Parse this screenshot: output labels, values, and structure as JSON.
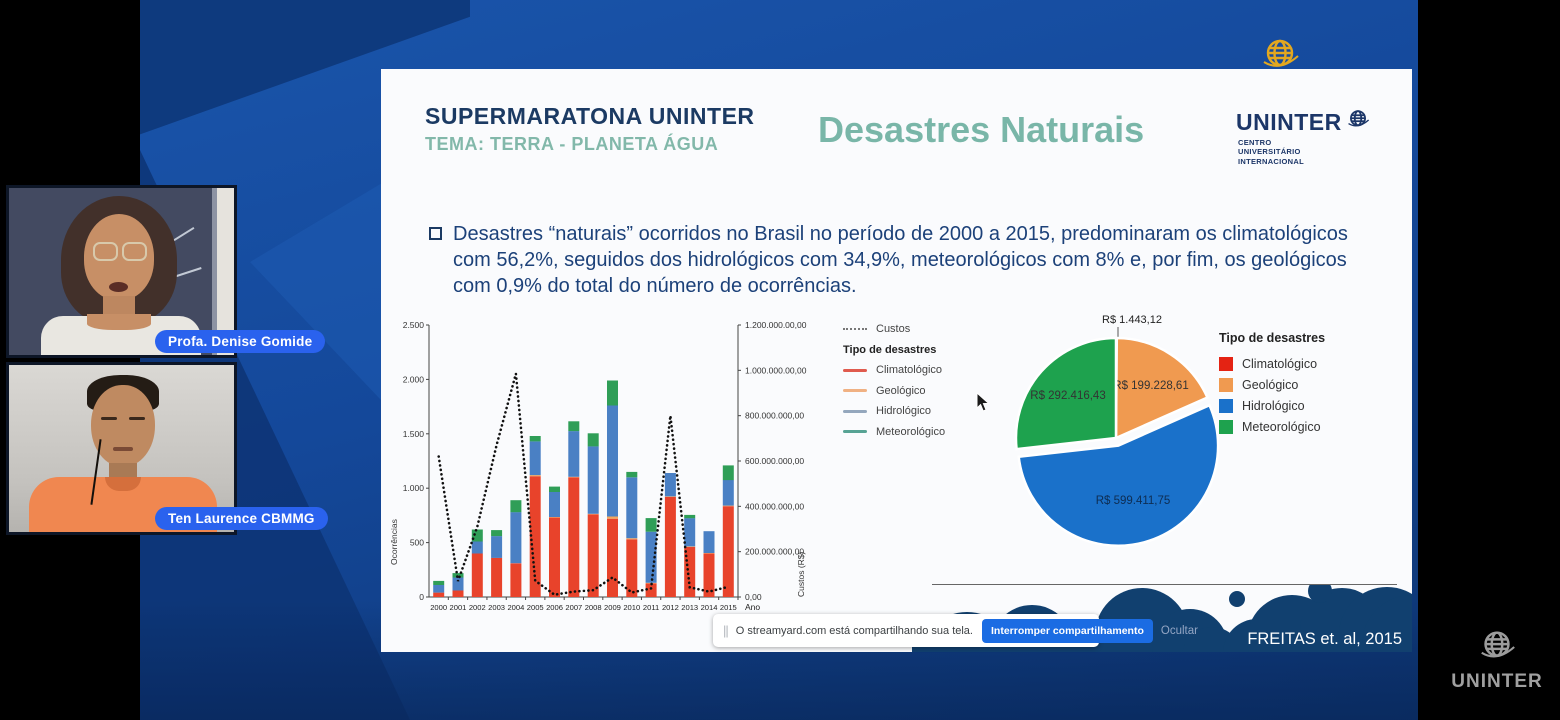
{
  "stream": {
    "participants": [
      {
        "label": "Profa. Denise Gomide"
      },
      {
        "label": "Ten Laurence CBMMG"
      }
    ],
    "share_bar": {
      "message": "O streamyard.com está compartilhando sua tela.",
      "stop_button": "Interromper compartilhamento",
      "hide_button": "Ocultar"
    },
    "watermark_text": "UNINTER"
  },
  "slide": {
    "kicker_title": "SUPERMARATONA UNINTER",
    "kicker_subtitle": "TEMA: TERRA - PLANETA ÁGUA",
    "title": "Desastres Naturais",
    "logo_text": "UNINTER",
    "logo_subtext_lines": [
      "CENTRO",
      "UNIVERSITÁRIO",
      "INTERNACIONAL"
    ],
    "bullet_text": "Desastres “naturais” ocorridos no Brasil no período de 2000 a 2015, predominaram os climatológicos com 56,2%, seguidos dos hidrológicos com 34,9%, meteorológicos com 8% e, por fim, os geológicos com 0,9% do total do número de ocorrências.",
    "citation": "FREITAS et. al, 2015"
  },
  "colors": {
    "accent_teal": "#79b6a8",
    "navy": "#1b3a63",
    "pill_blue": "#2a62ee",
    "stream_button_blue": "#1b6ce3",
    "slide_footer_navy": "#11406f"
  },
  "chart_data": [
    {
      "type": "bar",
      "subtype": "stacked-bars-with-dotted-line",
      "xlabel": "Ano",
      "ylabel_left": "Ocorrências",
      "ylabel_right": "Custos (R$)",
      "categories": [
        "2000",
        "2001",
        "2002",
        "2003",
        "2004",
        "2005",
        "2006",
        "2007",
        "2008",
        "2009",
        "2010",
        "2011",
        "2012",
        "2013",
        "2014",
        "2015"
      ],
      "ylim_left": [
        0,
        2500
      ],
      "yticks_left": [
        "0",
        "500",
        "1.000",
        "1.500",
        "2.000",
        "2.500"
      ],
      "ylim_right": [
        0,
        1200000000
      ],
      "yticks_right": [
        "0,00",
        "200.000.000,00",
        "400.000.000,00",
        "600.000.000,00",
        "800.000.000,00",
        "1.000.000.00,00",
        "1.200.000.00,00"
      ],
      "legend_line_label": "Custos",
      "legend_header": "Tipo de desastres",
      "series": [
        {
          "name": "Climatológico",
          "color": "#e8432b",
          "swatch": "#e05b4e",
          "values": [
            40,
            60,
            400,
            360,
            310,
            1110,
            730,
            1100,
            760,
            720,
            530,
            125,
            920,
            460,
            400,
            835
          ]
        },
        {
          "name": "Geológico",
          "color": "#f2a75c",
          "swatch": "#f0b183",
          "values": [
            0,
            0,
            0,
            0,
            0,
            10,
            5,
            5,
            5,
            20,
            10,
            5,
            5,
            5,
            5,
            5
          ]
        },
        {
          "name": "Hidrológico",
          "color": "#4a80c4",
          "swatch": "#94a7bd",
          "values": [
            70,
            120,
            110,
            200,
            470,
            310,
            230,
            420,
            620,
            1020,
            560,
            470,
            215,
            260,
            200,
            235
          ]
        },
        {
          "name": "Meteorológico",
          "color": "#2f9e57",
          "swatch": "#57a394",
          "values": [
            38,
            40,
            110,
            55,
            110,
            50,
            50,
            90,
            120,
            230,
            50,
            125,
            0,
            30,
            0,
            135
          ]
        }
      ],
      "line_series": {
        "name": "Custos",
        "axis": "right",
        "style": "dotted",
        "color": "#111111",
        "values": [
          620000000,
          70000000,
          310000000,
          670000000,
          985000000,
          72000000,
          10000000,
          24000000,
          30000000,
          86000000,
          20000000,
          38000000,
          800000000,
          43000000,
          24000000,
          45000000
        ]
      }
    },
    {
      "type": "pie",
      "legend_title": "Tipo de desastres",
      "direction": "clockwise",
      "start_angle_deg": 0,
      "slices": [
        {
          "name": "Climatológico",
          "color": "#e42313",
          "value": 1443.12,
          "label": "R$ 1.443,12",
          "label_pos": "outside-top"
        },
        {
          "name": "Geológico",
          "color": "#f09a50",
          "value": 199228.61,
          "label": "R$ 199.228,61",
          "label_pos": "inside"
        },
        {
          "name": "Hidrológico",
          "color": "#1a71ca",
          "value": 599411.75,
          "label": "R$ 599.411,75",
          "label_pos": "inside",
          "exploded": true
        },
        {
          "name": "Meteorológico",
          "color": "#1ea24e",
          "value": 292416.43,
          "label": "R$ 292.416,43",
          "label_pos": "inside"
        }
      ]
    }
  ]
}
